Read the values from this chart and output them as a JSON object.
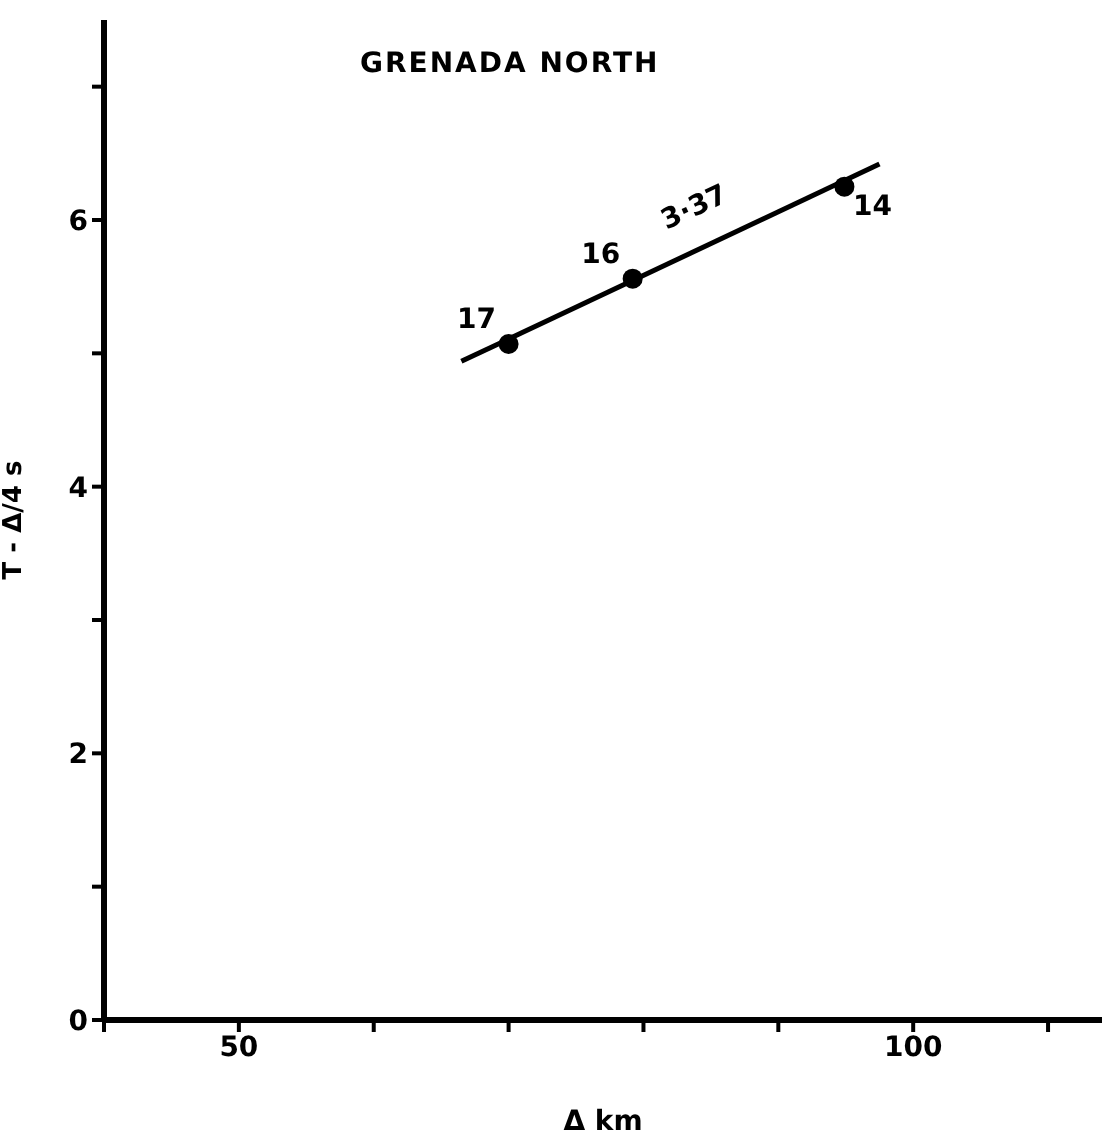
{
  "chart_data": {
    "type": "scatter",
    "title": "GRENADA NORTH",
    "xlabel": "Δ   km",
    "ylabel": "T - Δ/4   s",
    "xlim": [
      40,
      114
    ],
    "xticks": [
      {
        "value": 40,
        "label": null
      },
      50,
      {
        "value": 60,
        "label": null
      },
      {
        "value": 70,
        "label": null
      },
      {
        "value": 80,
        "label": null
      },
      {
        "value": 90,
        "label": null
      },
      100,
      {
        "value": 110,
        "label": null
      }
    ],
    "ylim": [
      0,
      7.5
    ],
    "yticks": [
      0,
      {
        "value": 1,
        "label": null
      },
      2,
      {
        "value": 3,
        "label": null
      },
      4,
      {
        "value": 5,
        "label": null
      },
      6,
      {
        "value": 7,
        "label": null
      }
    ],
    "marker": "circle",
    "series": [
      {
        "color": "#000000",
        "x": [
          70,
          79.2,
          94.9
        ],
        "values": [
          5.07,
          5.56,
          6.25
        ]
      },
      {
        "type": "line",
        "color": "#000000",
        "marker": "none",
        "line_style": "solid",
        "x": [
          66.5,
          97.5
        ],
        "values": [
          4.94,
          6.42
        ]
      }
    ],
    "annotations": [
      {
        "text": "17",
        "x": 70,
        "y": 5.07
      },
      {
        "text": "16",
        "x": 79.2,
        "y": 5.56
      },
      {
        "text": "14",
        "x": 94.9,
        "y": 6.25
      },
      "3·37"
    ]
  }
}
